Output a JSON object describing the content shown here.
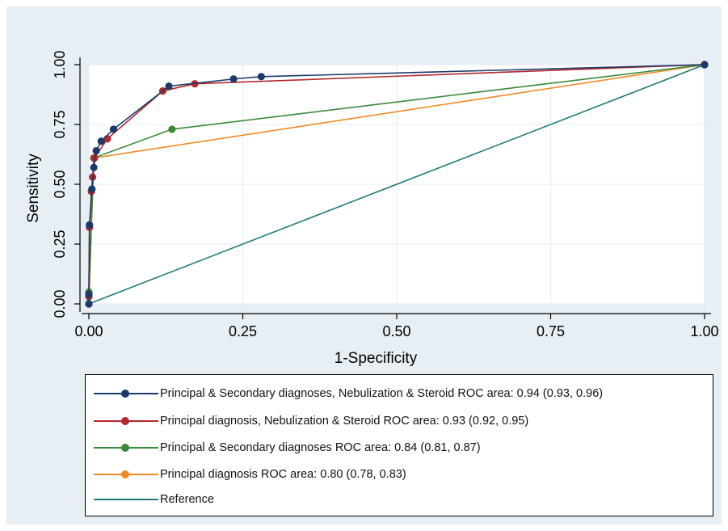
{
  "chart_data": {
    "type": "line",
    "title": "",
    "xlabel": "1-Specificity",
    "ylabel": "Sensitivity",
    "xlim": [
      0,
      1
    ],
    "ylim": [
      0,
      1
    ],
    "xticks": [
      "0.00",
      "0.25",
      "0.50",
      "0.75",
      "1.00"
    ],
    "yticks": [
      "0.00",
      "0.25",
      "0.50",
      "0.75",
      "1.00"
    ],
    "grid": true,
    "legend_position": "bottom",
    "series": [
      {
        "name": "Principal & Secondary diagnoses, Nebulization & Steroid ROC area: 0.94 (0.93, 0.96)",
        "color": "#1b3a6b",
        "markers": true,
        "points": [
          [
            0,
            0
          ],
          [
            0,
            0.04
          ],
          [
            0.001,
            0.33
          ],
          [
            0.005,
            0.48
          ],
          [
            0.008,
            0.57
          ],
          [
            0.012,
            0.64
          ],
          [
            0.02,
            0.68
          ],
          [
            0.04,
            0.73
          ],
          [
            0.13,
            0.91
          ],
          [
            0.235,
            0.94
          ],
          [
            0.28,
            0.95
          ],
          [
            1,
            1
          ]
        ]
      },
      {
        "name": "Principal diagnosis, Nebulization & Steroid ROC area: 0.93 (0.92, 0.95)",
        "color": "#b5282e",
        "markers": true,
        "points": [
          [
            0,
            0
          ],
          [
            0,
            0.03
          ],
          [
            0.001,
            0.32
          ],
          [
            0.004,
            0.47
          ],
          [
            0.006,
            0.53
          ],
          [
            0.009,
            0.61
          ],
          [
            0.03,
            0.69
          ],
          [
            0.12,
            0.89
          ],
          [
            0.172,
            0.92
          ],
          [
            1,
            1
          ]
        ]
      },
      {
        "name": "Principal & Secondary diagnoses ROC area: 0.84 (0.81, 0.87)",
        "color": "#3a8a3a",
        "markers": true,
        "points": [
          [
            0,
            0
          ],
          [
            0,
            0.05
          ],
          [
            0.008,
            0.61
          ],
          [
            0.135,
            0.73
          ],
          [
            1,
            1
          ]
        ]
      },
      {
        "name": "Principal diagnosis ROC area: 0.80 (0.78, 0.83)",
        "color": "#f08a24",
        "markers": true,
        "points": [
          [
            0,
            0
          ],
          [
            0.008,
            0.61
          ],
          [
            1,
            1
          ]
        ]
      },
      {
        "name": "Reference",
        "color": "#1f7a7a",
        "markers": false,
        "points": [
          [
            0,
            0
          ],
          [
            1,
            1
          ]
        ]
      }
    ]
  }
}
